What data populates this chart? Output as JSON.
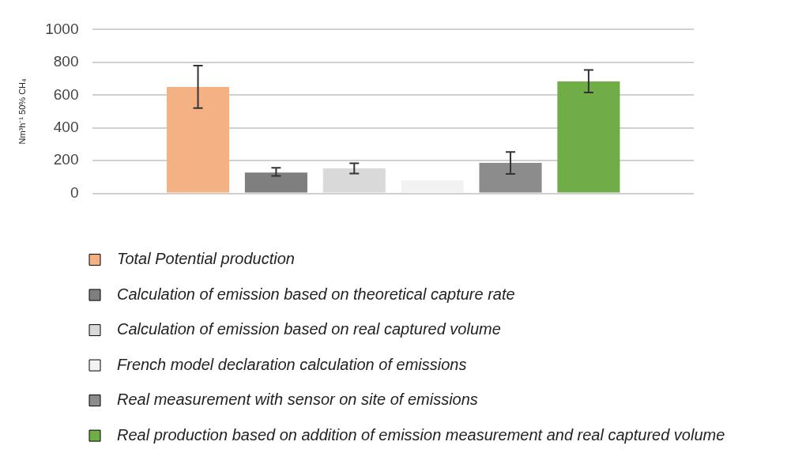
{
  "chart_data": {
    "type": "bar",
    "ylabel": "Nm³h⁻¹ 50% CH₄",
    "categories": [
      null
    ],
    "series": [
      {
        "name": "Total Potential production",
        "color": "#f4b183",
        "values": [
          650
        ],
        "errors": [
          [
            520,
            780
          ]
        ]
      },
      {
        "name": "Calculation of emission based on theoretical capture rate",
        "color": "#7f7f7f",
        "values": [
          127
        ],
        "errors": [
          [
            107,
            156
          ]
        ]
      },
      {
        "name": "Calculation of emission based on real captured volume",
        "color": "#d9d9d9",
        "values": [
          153
        ],
        "errors": [
          [
            121,
            184
          ]
        ]
      },
      {
        "name": "French model declaration calculation of emissions",
        "color": "#f2f2f2",
        "values": [
          79
        ],
        "errors": [
          null
        ]
      },
      {
        "name": "Real measurement with sensor on site of emissions",
        "color": "#8c8c8c",
        "values": [
          186
        ],
        "errors": [
          [
            119,
            253
          ]
        ]
      },
      {
        "name": "Real production based on addition of emission measurement and real captured volume",
        "color": "#70ad47",
        "values": [
          683
        ],
        "errors": [
          [
            616,
            753
          ]
        ]
      }
    ],
    "ylim": [
      0,
      1000
    ],
    "yticks": [
      0,
      200,
      400,
      600,
      800,
      1000
    ],
    "grid": "y",
    "legend": "bottom"
  }
}
